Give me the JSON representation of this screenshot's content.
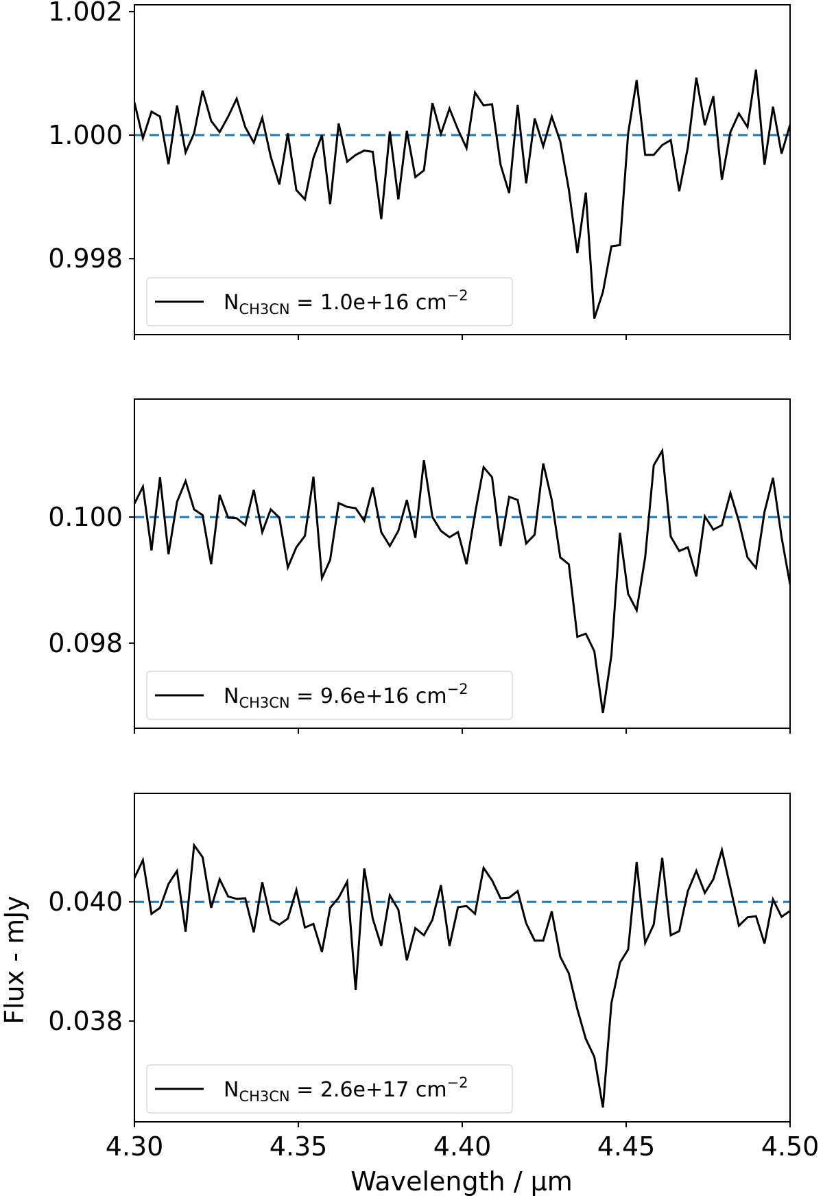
{
  "chart_data": {
    "type": "line",
    "layout": "3 vertically stacked panels sharing x-axis",
    "xlabel": "Wavelength / μm",
    "ylabel": "Flux - mJy",
    "xlim": [
      4.3,
      4.5
    ],
    "xticks": [
      "4.30",
      "4.35",
      "4.40",
      "4.45",
      "4.50"
    ],
    "grid": false,
    "line_color": "#000000",
    "reference_line_color": "#1f77b4",
    "panels": [
      {
        "legend": {
          "prefix": "N",
          "subscript": "CH3CN",
          "value": " = 1.0e+16 cm",
          "superscript": "−2",
          "position": "lower left"
        },
        "ylim": [
          0.99677,
          1.00211
        ],
        "yticks": [
          "0.998",
          "1.000",
          "1.002"
        ],
        "ytick_values": [
          0.998,
          1.0,
          1.002
        ],
        "reference_level": 1.0,
        "x": [
          4.3,
          4.3026,
          4.3052,
          4.3078,
          4.3104,
          4.313,
          4.3156,
          4.3182,
          4.3208,
          4.3234,
          4.326,
          4.3286,
          4.3312,
          4.3338,
          4.3364,
          4.339,
          4.3416,
          4.3442,
          4.3468,
          4.3494,
          4.352,
          4.3546,
          4.3572,
          4.3597,
          4.3623,
          4.3649,
          4.3675,
          4.3701,
          4.3727,
          4.3753,
          4.3779,
          4.3805,
          4.3831,
          4.3857,
          4.3883,
          4.3909,
          4.3935,
          4.3961,
          4.3987,
          4.4013,
          4.4039,
          4.4065,
          4.4091,
          4.4117,
          4.4143,
          4.4169,
          4.4195,
          4.4221,
          4.4247,
          4.4273,
          4.4299,
          4.4325,
          4.4351,
          4.4377,
          4.4403,
          4.4429,
          4.4455,
          4.4481,
          4.4506,
          4.4532,
          4.4558,
          4.4584,
          4.461,
          4.4636,
          4.4662,
          4.4688,
          4.4714,
          4.474,
          4.4766,
          4.4792,
          4.4818,
          4.4844,
          4.487,
          4.4896,
          4.4922,
          4.4948,
          4.4974,
          4.5
        ],
        "values": [
          1.00053,
          0.99995,
          1.00038,
          1.0003,
          0.99953,
          1.00048,
          0.99972,
          1.00003,
          1.00072,
          1.00023,
          1.00005,
          1.0003,
          1.00059,
          1.00013,
          0.99988,
          1.00028,
          0.99965,
          0.9992,
          1.00003,
          0.99911,
          0.99896,
          0.99963,
          1.0,
          0.99888,
          1.00019,
          0.99957,
          0.99968,
          0.99975,
          0.99973,
          0.99864,
          1.00006,
          0.99896,
          1.00007,
          0.99932,
          0.99943,
          1.00052,
          1.00002,
          1.00043,
          1.00009,
          0.99979,
          1.00069,
          1.00048,
          1.0005,
          0.99952,
          0.99906,
          1.00049,
          0.99922,
          1.00027,
          0.99982,
          1.0003,
          0.9999,
          0.99912,
          0.99809,
          0.99907,
          0.99703,
          0.99746,
          0.9982,
          0.99822,
          1.00003,
          1.00089,
          0.99968,
          0.99968,
          0.99984,
          0.99992,
          0.99909,
          0.9998,
          1.00093,
          1.00016,
          1.00063,
          0.99928,
          1.00005,
          1.00035,
          1.00013,
          1.00106,
          0.99952,
          1.00046,
          0.9997,
          1.00017
        ]
      },
      {
        "legend": {
          "prefix": "N",
          "subscript": "CH3CN",
          "value": " = 9.6e+16 cm",
          "superscript": "−2",
          "position": "lower left"
        },
        "ylim": [
          0.09665,
          0.10187
        ],
        "yticks": [
          "0.098",
          "0.100"
        ],
        "ytick_values": [
          0.098,
          0.1
        ],
        "reference_level": 0.1,
        "x": [
          4.3,
          4.3026,
          4.3052,
          4.3078,
          4.3104,
          4.313,
          4.3156,
          4.3182,
          4.3208,
          4.3234,
          4.326,
          4.3286,
          4.3312,
          4.3338,
          4.3364,
          4.339,
          4.3416,
          4.3442,
          4.3468,
          4.3494,
          4.352,
          4.3546,
          4.3572,
          4.3597,
          4.3623,
          4.3649,
          4.3675,
          4.3701,
          4.3727,
          4.3753,
          4.3779,
          4.3805,
          4.3831,
          4.3857,
          4.3883,
          4.3909,
          4.3935,
          4.3961,
          4.3987,
          4.4013,
          4.4039,
          4.4065,
          4.4091,
          4.4117,
          4.4143,
          4.4169,
          4.4195,
          4.4221,
          4.4247,
          4.4273,
          4.4299,
          4.4325,
          4.4351,
          4.4377,
          4.4403,
          4.4429,
          4.4455,
          4.4481,
          4.4506,
          4.4532,
          4.4558,
          4.4584,
          4.461,
          4.4636,
          4.4662,
          4.4688,
          4.4714,
          4.474,
          4.4766,
          4.4792,
          4.4818,
          4.4844,
          4.487,
          4.4896,
          4.4922,
          4.4948,
          4.4974,
          4.5
        ],
        "values": [
          0.10021,
          0.10048,
          0.09947,
          0.10063,
          0.09941,
          0.10024,
          0.10057,
          0.10012,
          0.10003,
          0.09925,
          0.10035,
          0.09999,
          0.09998,
          0.09987,
          0.10043,
          0.09976,
          0.10012,
          0.09999,
          0.0992,
          0.09952,
          0.0997,
          0.10064,
          0.09903,
          0.09932,
          0.10022,
          0.10016,
          0.10014,
          0.09994,
          0.10047,
          0.09976,
          0.09954,
          0.09978,
          0.10027,
          0.09967,
          0.1009,
          0.1,
          0.09978,
          0.09968,
          0.09976,
          0.09925,
          0.10005,
          0.10079,
          0.10063,
          0.09954,
          0.10032,
          0.10027,
          0.09958,
          0.09972,
          0.10085,
          0.10027,
          0.09936,
          0.09925,
          0.0981,
          0.09815,
          0.09787,
          0.09689,
          0.09781,
          0.09975,
          0.09878,
          0.09852,
          0.09936,
          0.10082,
          0.10105,
          0.09969,
          0.09946,
          0.09952,
          0.09906,
          0.10001,
          0.0998,
          0.09987,
          0.10038,
          0.09993,
          0.09936,
          0.09919,
          0.10008,
          0.10062,
          0.09968,
          0.09893
        ]
      },
      {
        "legend": {
          "prefix": "N",
          "subscript": "CH3CN",
          "value": " = 2.6e+17 cm",
          "superscript": "−2",
          "position": "lower left"
        },
        "ylim": [
          0.03631,
          0.04182
        ],
        "yticks": [
          "0.038",
          "0.040"
        ],
        "ytick_values": [
          0.038,
          0.04
        ],
        "reference_level": 0.04,
        "x": [
          4.3,
          4.3026,
          4.3052,
          4.3078,
          4.3104,
          4.313,
          4.3156,
          4.3182,
          4.3208,
          4.3234,
          4.326,
          4.3286,
          4.3312,
          4.3338,
          4.3364,
          4.339,
          4.3416,
          4.3442,
          4.3468,
          4.3494,
          4.352,
          4.3546,
          4.3572,
          4.3597,
          4.3623,
          4.3649,
          4.3675,
          4.3701,
          4.3727,
          4.3753,
          4.3779,
          4.3805,
          4.3831,
          4.3857,
          4.3883,
          4.3909,
          4.3935,
          4.3961,
          4.3987,
          4.4013,
          4.4039,
          4.4065,
          4.4091,
          4.4117,
          4.4143,
          4.4169,
          4.4195,
          4.4221,
          4.4247,
          4.4273,
          4.4299,
          4.4325,
          4.4351,
          4.4377,
          4.4403,
          4.4429,
          4.4455,
          4.4481,
          4.4506,
          4.4532,
          4.4558,
          4.4584,
          4.461,
          4.4636,
          4.4662,
          4.4688,
          4.4714,
          4.474,
          4.4766,
          4.4792,
          4.4818,
          4.4844,
          4.487,
          4.4896,
          4.4922,
          4.4948,
          4.4974,
          4.5
        ],
        "values": [
          0.0404,
          0.0407,
          0.0398,
          0.0399,
          0.0403,
          0.04052,
          0.0395,
          0.04095,
          0.04075,
          0.0399,
          0.04038,
          0.04009,
          0.04005,
          0.04006,
          0.03949,
          0.04033,
          0.0397,
          0.03962,
          0.03972,
          0.0402,
          0.03957,
          0.03963,
          0.03916,
          0.0399,
          0.04007,
          0.04034,
          0.03852,
          0.04056,
          0.03972,
          0.03926,
          0.04011,
          0.03987,
          0.03902,
          0.03956,
          0.03944,
          0.0397,
          0.04028,
          0.03926,
          0.03991,
          0.03993,
          0.0398,
          0.04057,
          0.04036,
          0.04006,
          0.04007,
          0.04018,
          0.03964,
          0.03935,
          0.03935,
          0.03984,
          0.03908,
          0.0388,
          0.0382,
          0.0377,
          0.0374,
          0.03655,
          0.0383,
          0.03898,
          0.0392,
          0.04067,
          0.03931,
          0.03962,
          0.04074,
          0.03944,
          0.03951,
          0.04018,
          0.04052,
          0.04015,
          0.04038,
          0.04087,
          0.04024,
          0.0396,
          0.03974,
          0.03976,
          0.0393,
          0.04004,
          0.03975,
          0.03985
        ]
      }
    ]
  },
  "axes": {
    "xlabel": "Wavelength / μm",
    "ylabel": "Flux - mJy"
  }
}
